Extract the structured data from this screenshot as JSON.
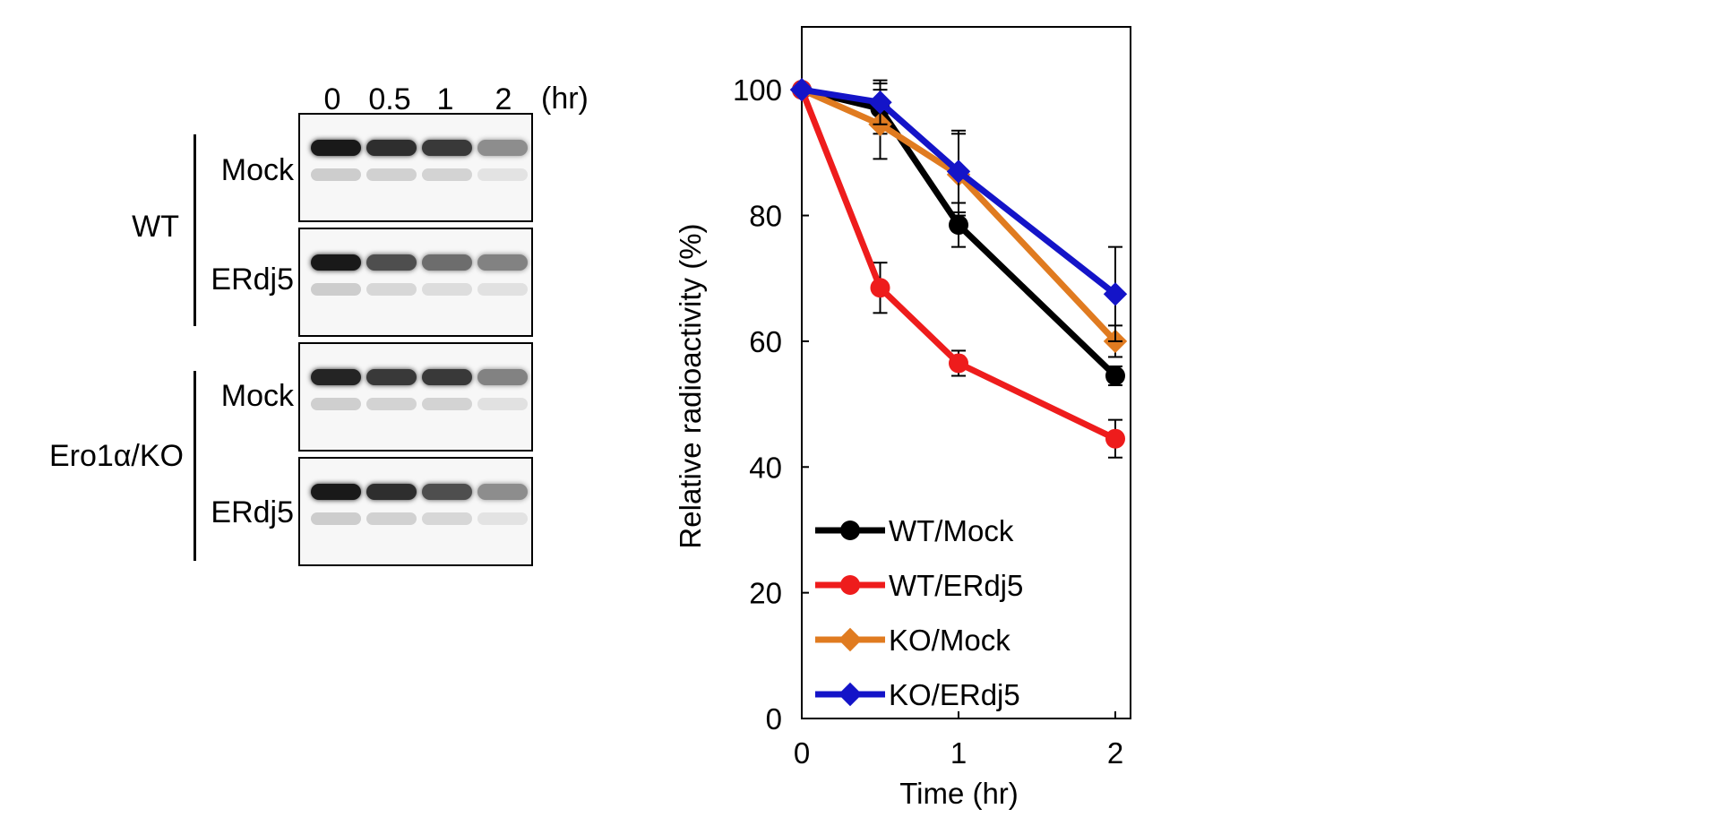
{
  "blot": {
    "lanes": [
      "0",
      "0.5",
      "1",
      "2"
    ],
    "unit": "(hr)",
    "groups": [
      {
        "label": "WT",
        "rows": [
          {
            "label": "Mock",
            "intensity": [
              1.0,
              0.9,
              0.85,
              0.45
            ]
          },
          {
            "label": "ERdj5",
            "intensity": [
              1.0,
              0.75,
              0.6,
              0.5
            ]
          }
        ]
      },
      {
        "label": "Ero1α/KO",
        "rows": [
          {
            "label": "Mock",
            "intensity": [
              0.95,
              0.85,
              0.85,
              0.5
            ]
          },
          {
            "label": "ERdj5",
            "intensity": [
              1.0,
              0.9,
              0.75,
              0.45
            ]
          }
        ]
      }
    ]
  },
  "chart_data": {
    "type": "line",
    "x": [
      0,
      0.5,
      1,
      2
    ],
    "xlabel": "Time (hr)",
    "ylabel": "Relative radioactivity (%)",
    "xlim": [
      0,
      2
    ],
    "ylim": [
      0,
      110
    ],
    "xticks": [
      "0",
      "1",
      "2"
    ],
    "yticks": [
      "0",
      "20",
      "40",
      "60",
      "80",
      "100"
    ],
    "grid": false,
    "legend_position": "bottom-left",
    "series": [
      {
        "name": "WT/Mock",
        "color": "#000000",
        "marker": "circle",
        "values": [
          100,
          97,
          78.5,
          54.5
        ],
        "errors": [
          0,
          4,
          3.5,
          1.5
        ]
      },
      {
        "name": "WT/ERdj5",
        "color": "#ee1c1c",
        "marker": "circle",
        "values": [
          100,
          68.5,
          56.5,
          44.5
        ],
        "errors": [
          0,
          4,
          2,
          3
        ]
      },
      {
        "name": "KO/Mock",
        "color": "#e07b20",
        "marker": "diamond",
        "values": [
          100,
          94.5,
          86.5,
          60
        ],
        "errors": [
          0,
          5.5,
          6.5,
          2.5
        ]
      },
      {
        "name": "KO/ERdj5",
        "color": "#1414c8",
        "marker": "diamond",
        "values": [
          100,
          98,
          87,
          67.5
        ],
        "errors": [
          0,
          3.5,
          6.5,
          7.5
        ]
      }
    ]
  }
}
